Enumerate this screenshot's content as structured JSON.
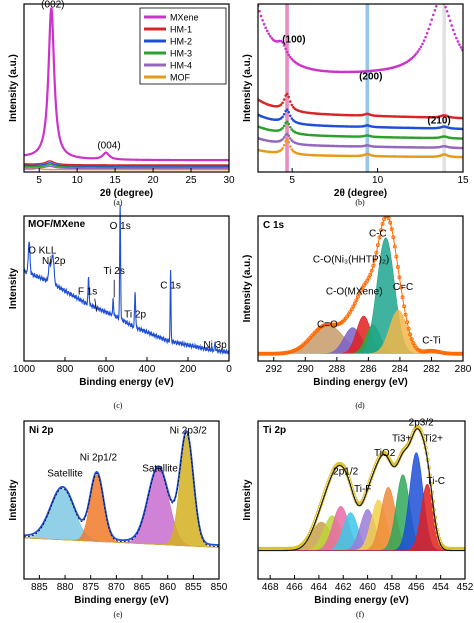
{
  "chart_data": [
    {
      "id": "a",
      "type": "line",
      "panel_label": "(a)",
      "xlabel": "2θ (degree)",
      "ylabel": "Intensity (a.u.)",
      "xlim": [
        3,
        30
      ],
      "ylim": [
        0,
        100
      ],
      "xticks": [
        5,
        10,
        15,
        20,
        25,
        30
      ],
      "annotations": [
        {
          "text": "(002)",
          "x": 6.8,
          "y": 98
        },
        {
          "text": "(004)",
          "x": 14.2,
          "y": 14
        }
      ],
      "legend_position": "top-right",
      "series": [
        {
          "name": "MXene",
          "color": "#cc33cc",
          "peaks": [
            [
              6.6,
              90,
              0.45
            ],
            [
              13.8,
              4,
              0.5
            ]
          ],
          "base": 7,
          "tail": [
            3,
            1.6,
            5
          ],
          "decay": 0
        },
        {
          "name": "HM-1",
          "color": "#d62728",
          "peaks": [
            [
              6.4,
              2.2,
              0.7
            ]
          ],
          "base": 4.2,
          "tail": [
            3,
            0.6,
            3
          ],
          "decay": 0
        },
        {
          "name": "HM-2",
          "color": "#1f4fd6",
          "peaks": [
            [
              6.4,
              1.8,
              0.7
            ]
          ],
          "base": 3.5,
          "tail": [
            3,
            0.5,
            3
          ],
          "decay": 0
        },
        {
          "name": "HM-3",
          "color": "#2ca02c",
          "peaks": [
            [
              6.4,
              1.5,
              0.7
            ]
          ],
          "base": 2.8,
          "tail": [
            3,
            0.4,
            3
          ],
          "decay": 0
        },
        {
          "name": "HM-4",
          "color": "#9467bd",
          "peaks": [
            [
              6.4,
              1.2,
              0.7
            ]
          ],
          "base": 2.1,
          "tail": [
            3,
            0.3,
            3
          ],
          "decay": 0
        },
        {
          "name": "MOF",
          "color": "#e69a1a",
          "peaks": [
            [
              4.8,
              0.8,
              0.3
            ]
          ],
          "base": 1.4,
          "tail": [
            3,
            0.2,
            3
          ],
          "decay": 0
        }
      ]
    },
    {
      "id": "b",
      "type": "line",
      "panel_label": "(b)",
      "xlabel": "2θ (degree)",
      "ylabel": "Intensity (a.u.)",
      "xlim": [
        3,
        15
      ],
      "ylim": [
        0,
        100
      ],
      "xticks": [
        5,
        10,
        15
      ],
      "annotations": [
        {
          "text": "(100)",
          "x": 5.1,
          "y": 77
        },
        {
          "text": "(200)",
          "x": 9.6,
          "y": 55
        },
        {
          "text": "(210)",
          "x": 13.6,
          "y": 29
        }
      ],
      "highlight_bands": [
        {
          "x": 4.7,
          "color": "#e36fb0"
        },
        {
          "x": 9.4,
          "color": "#7ab8e8"
        },
        {
          "x": 13.9,
          "color": "#d9d9d9"
        }
      ],
      "series": [
        {
          "name": "MXene",
          "color": "#cc33cc",
          "peaks": [
            [
              4.4,
              8,
              0.35
            ],
            [
              13.7,
              44,
              0.9
            ]
          ],
          "base": 58,
          "tail": [
            3,
            40,
            1.1
          ],
          "decay": 0
        },
        {
          "name": "HM-1",
          "color": "#d62728",
          "peaks": [
            [
              4.7,
              10,
              0.22
            ],
            [
              9.4,
              1.2,
              0.2
            ],
            [
              13.9,
              1.5,
              0.25
            ]
          ],
          "base": 35,
          "tail": [
            3,
            8,
            1.2
          ],
          "decay": 0.25
        },
        {
          "name": "HM-2",
          "color": "#1f4fd6",
          "peaks": [
            [
              4.7,
              8,
              0.22
            ],
            [
              9.4,
              1.0,
              0.2
            ],
            [
              13.9,
              1.2,
              0.25
            ]
          ],
          "base": 28,
          "tail": [
            3,
            6,
            1.2
          ],
          "decay": 0.2
        },
        {
          "name": "HM-3",
          "color": "#2ca02c",
          "peaks": [
            [
              4.7,
              7,
              0.22
            ],
            [
              9.4,
              0.9,
              0.2
            ],
            [
              13.9,
              1.1,
              0.25
            ]
          ],
          "base": 22,
          "tail": [
            3,
            5,
            1.2
          ],
          "decay": 0.18
        },
        {
          "name": "HM-4",
          "color": "#9467bd",
          "peaks": [
            [
              4.7,
              6,
              0.22
            ],
            [
              9.4,
              0.8,
              0.2
            ],
            [
              13.9,
              1.0,
              0.25
            ]
          ],
          "base": 16,
          "tail": [
            3,
            4,
            1.2
          ],
          "decay": 0.15
        },
        {
          "name": "MOF",
          "color": "#e69a1a",
          "peaks": [
            [
              4.7,
              9,
              0.2
            ],
            [
              9.4,
              1.4,
              0.2
            ],
            [
              13.9,
              1.6,
              0.22
            ]
          ],
          "base": 10,
          "tail": [
            3,
            3,
            1.2
          ],
          "decay": 0.1
        }
      ]
    },
    {
      "id": "c",
      "type": "line",
      "panel_label": "(c)",
      "title": "MOF/MXene",
      "xlabel": "Binding energy (eV)",
      "ylabel": "Intensity",
      "xlim": [
        1000,
        0
      ],
      "ylim": [
        0,
        100
      ],
      "xticks": [
        1000,
        800,
        600,
        400,
        200,
        0
      ],
      "annotations": [
        {
          "text": "O KLL",
          "x": 980,
          "y": 74
        },
        {
          "text": "Ni 2p",
          "x": 855,
          "y": 67
        },
        {
          "text": "F 1s",
          "x": 690,
          "y": 46
        },
        {
          "text": "Ti 2s",
          "x": 560,
          "y": 60
        },
        {
          "text": "O 1s",
          "x": 531,
          "y": 91
        },
        {
          "text": "Ti 2p",
          "x": 458,
          "y": 30
        },
        {
          "text": "C 1s",
          "x": 285,
          "y": 50
        },
        {
          "text": "Ni 3p",
          "x": 68,
          "y": 9
        }
      ],
      "series": [
        {
          "name": "MOF/MXene",
          "color": "#1f4fd6",
          "base": 6,
          "peaks": [
            [
              975,
              22,
              4
            ],
            [
              860,
              20,
              6
            ],
            [
              875,
              12,
              5
            ],
            [
              685,
              18,
              2.5
            ],
            [
              565,
              12,
              2
            ],
            [
              531,
              78,
              2.2
            ],
            [
              458,
              24,
              2.5
            ],
            [
              285,
              48,
              2
            ],
            [
              68,
              6,
              2
            ]
          ],
          "step_background": [
            [
              1000,
              62
            ],
            [
              880,
              55
            ],
            [
              700,
              40
            ],
            [
              540,
              30
            ],
            [
              470,
              24
            ],
            [
              300,
              14
            ],
            [
              100,
              8
            ],
            [
              0,
              6
            ]
          ]
        }
      ]
    },
    {
      "id": "d",
      "type": "area",
      "panel_label": "(d)",
      "title": "C 1s",
      "xlabel": "Binding energy (eV)",
      "ylabel": "Intensity (a.u.)",
      "xlim": [
        293,
        280
      ],
      "ylim": [
        0,
        100
      ],
      "xticks": [
        292,
        290,
        288,
        286,
        284,
        282,
        280
      ],
      "annotations": [
        {
          "text": "C-C",
          "x": 285.4,
          "y": 86
        },
        {
          "text": "C-O(Ni₃(HHTP)₂)",
          "x": 287.1,
          "y": 68
        },
        {
          "text": "C-O(MXene)",
          "x": 286.9,
          "y": 46
        },
        {
          "text": "C=O",
          "x": 288.6,
          "y": 23
        },
        {
          "text": "C=C",
          "x": 283.8,
          "y": 49
        },
        {
          "text": "C-Ti",
          "x": 282.0,
          "y": 12
        }
      ],
      "components": [
        {
          "name": "C=O",
          "center": 288.6,
          "height": 20,
          "width": 1.0,
          "color": "#c79a6a"
        },
        {
          "name": "C-O(Ni₃(HHTP)₂)",
          "center": 287.0,
          "height": 18,
          "width": 0.55,
          "color": "#7b5fc9"
        },
        {
          "name": "C-O(MXene)",
          "center": 286.3,
          "height": 26,
          "width": 0.45,
          "color": "#e02020"
        },
        {
          "name": "C-C/C=C green",
          "center": 285.7,
          "height": 20,
          "width": 0.45,
          "color": "#22b03a"
        },
        {
          "name": "C-C",
          "center": 284.9,
          "height": 80,
          "width": 0.55,
          "color": "#1fa58f"
        },
        {
          "name": "C=C",
          "center": 284.1,
          "height": 30,
          "width": 0.55,
          "color": "#f2b64a"
        },
        {
          "name": "C-Ti",
          "center": 282.0,
          "height": 2,
          "width": 0.5,
          "color": "#9ecae1"
        }
      ],
      "envelope_color": "#ff6a00",
      "baseline": 5
    },
    {
      "id": "e",
      "type": "area",
      "panel_label": "(e)",
      "title": "Ni 2p",
      "xlabel": "Binding energy (eV)",
      "ylabel": "Intensity",
      "xlim": [
        888,
        850
      ],
      "ylim": [
        0,
        100
      ],
      "xticks": [
        885,
        880,
        875,
        870,
        865,
        860,
        855,
        850
      ],
      "annotations": [
        {
          "text": "Satellite",
          "x": 880,
          "y": 65
        },
        {
          "text": "Ni 2p1/2",
          "x": 873.5,
          "y": 75
        },
        {
          "text": "Satellite",
          "x": 861.5,
          "y": 68
        },
        {
          "text": "Ni 2p3/2",
          "x": 856,
          "y": 92
        }
      ],
      "components": [
        {
          "name": "Satellite 1",
          "center": 880.5,
          "height": 32,
          "width": 2.3,
          "color": "#7ec8e3"
        },
        {
          "name": "Ni 2p1/2",
          "center": 873.8,
          "height": 42,
          "width": 1.3,
          "color": "#f07a2a"
        },
        {
          "name": "Satellite 2",
          "center": 861.8,
          "height": 48,
          "width": 2.0,
          "color": "#c86ccf"
        },
        {
          "name": "Ni 2p3/2",
          "center": 856.3,
          "height": 70,
          "width": 1.3,
          "color": "#d4b21e"
        }
      ],
      "envelope_color": "#1f4fd6",
      "baseline": 20
    },
    {
      "id": "f",
      "type": "area",
      "panel_label": "(f)",
      "title": "Ti 2p",
      "xlabel": "Binding energy (eV)",
      "ylabel": "Intensity",
      "xlim": [
        469,
        452
      ],
      "ylim": [
        0,
        100
      ],
      "xticks": [
        468,
        466,
        464,
        462,
        460,
        458,
        456,
        454,
        452
      ],
      "annotations": [
        {
          "text": "2p1/2",
          "x": 461.8,
          "y": 66
        },
        {
          "text": "Ti-F",
          "x": 460.4,
          "y": 55
        },
        {
          "text": "TiO2",
          "x": 458.6,
          "y": 78
        },
        {
          "text": "Ti3+",
          "x": 457.2,
          "y": 87
        },
        {
          "text": "2p3/2",
          "x": 455.6,
          "y": 97
        },
        {
          "text": "Ti2+",
          "x": 454.6,
          "y": 87
        },
        {
          "text": "Ti-C",
          "x": 454.4,
          "y": 60
        }
      ],
      "components": [
        {
          "name": "c1",
          "center": 463.8,
          "height": 18,
          "width": 0.8,
          "color": "#c8a04a"
        },
        {
          "name": "c2",
          "center": 462.9,
          "height": 22,
          "width": 0.7,
          "color": "#bcd53a"
        },
        {
          "name": "c3",
          "center": 462.2,
          "height": 28,
          "width": 0.65,
          "color": "#e66aa6"
        },
        {
          "name": "c4",
          "center": 461.4,
          "height": 24,
          "width": 0.6,
          "color": "#3cc8e8"
        },
        {
          "name": "c5",
          "center": 460.0,
          "height": 26,
          "width": 0.6,
          "color": "#9b7bd6"
        },
        {
          "name": "c6",
          "center": 459.1,
          "height": 32,
          "width": 0.6,
          "color": "#f2d04a"
        },
        {
          "name": "c7",
          "center": 458.3,
          "height": 40,
          "width": 0.6,
          "color": "#ef8a3a"
        },
        {
          "name": "c8",
          "center": 457.1,
          "height": 48,
          "width": 0.55,
          "color": "#2fa85a"
        },
        {
          "name": "c9",
          "center": 456.0,
          "height": 62,
          "width": 0.55,
          "color": "#1f4fd6"
        },
        {
          "name": "c10",
          "center": 455.1,
          "height": 42,
          "width": 0.5,
          "color": "#e02020"
        }
      ],
      "envelope_color": "#1a1a1a",
      "data_color": "#e0c020",
      "baseline": 18
    }
  ]
}
